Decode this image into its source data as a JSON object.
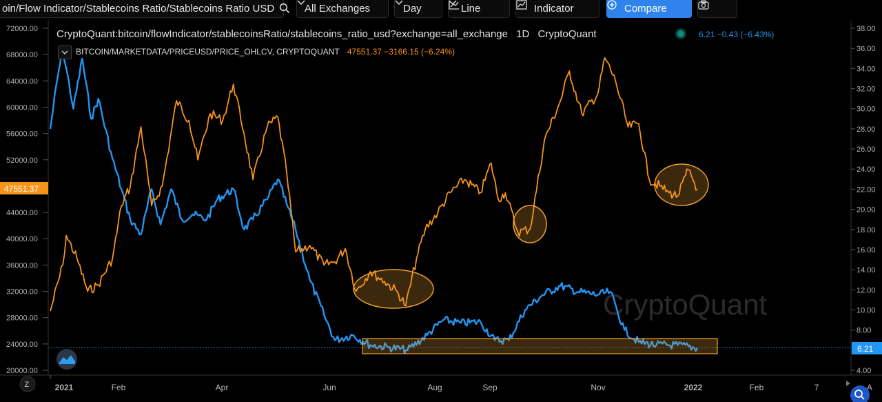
{
  "toolbar": {
    "symbol": "oin/Flow Indicator/Stablecoins Ratio/Stablecoins Ratio USD",
    "exchange": "All Exchanges",
    "interval": "Day",
    "style": "Line",
    "indicator": "Indicator",
    "compare": "Compare"
  },
  "legend": {
    "main_title": "CryptoQuant:bitcoin/flowIndicator/stablecoinsRatio/stablecoins_ratio_usd?exchange=all_exchange",
    "main_interval": "1D",
    "main_source": "CryptoQuant",
    "main_values": "6.21 −0.43 (−6.43%)",
    "price_title": "BITCOIN/MARKETDATA/PRICEUSD/PRICE_OHLCV, CRYPTOQUANT",
    "price_values": "47551.37 −3166.15 (−6.24%)"
  },
  "watermark": "CryptoQuant",
  "colors": {
    "price": "#f7931a",
    "ratio": "#2196f3",
    "highlight": "#f0a030"
  },
  "chart_data": {
    "type": "line",
    "x_ticks": [
      "2021",
      "Feb",
      "Apr",
      "Jun",
      "Aug",
      "Sep",
      "Nov",
      "2022",
      "Feb",
      "7",
      "A"
    ],
    "left_axis": {
      "ticks": [
        "72000.00",
        "68000.00",
        "64000.00",
        "60000.00",
        "56000.00",
        "52000.00",
        "44000.00",
        "40000.00",
        "36000.00",
        "32000.00",
        "28000.00",
        "24000.00",
        "20000.00"
      ],
      "current_label": "47551.37",
      "ylim": [
        20000,
        72000
      ]
    },
    "right_axis": {
      "ticks": [
        "38.00",
        "36.00",
        "34.00",
        "32.00",
        "30.00",
        "28.00",
        "26.00",
        "24.00",
        "22.00",
        "20.00",
        "18.00",
        "16.00",
        "14.00",
        "12.00",
        "10.00",
        "8.00",
        "4.00"
      ],
      "current_label": "6.21",
      "ylim": [
        4,
        38
      ]
    },
    "series": [
      {
        "name": "BITCOIN/MARKETDATA/PRICEUSD/PRICE_OHLCV",
        "axis": "left",
        "points": [
          [
            "2021-01-01",
            29000
          ],
          [
            "2021-01-08",
            36000
          ],
          [
            "2021-01-10",
            40500
          ],
          [
            "2021-01-16",
            37000
          ],
          [
            "2021-01-22",
            32000
          ],
          [
            "2021-01-28",
            33000
          ],
          [
            "2021-02-05",
            37000
          ],
          [
            "2021-02-10",
            45000
          ],
          [
            "2021-02-15",
            48000
          ],
          [
            "2021-02-21",
            57000
          ],
          [
            "2021-02-27",
            45000
          ],
          [
            "2021-03-05",
            48000
          ],
          [
            "2021-03-13",
            61000
          ],
          [
            "2021-03-20",
            58000
          ],
          [
            "2021-03-25",
            52000
          ],
          [
            "2021-04-01",
            59000
          ],
          [
            "2021-04-08",
            58000
          ],
          [
            "2021-04-14",
            63500
          ],
          [
            "2021-04-20",
            56000
          ],
          [
            "2021-04-25",
            49000
          ],
          [
            "2021-05-03",
            57000
          ],
          [
            "2021-05-09",
            58500
          ],
          [
            "2021-05-14",
            50000
          ],
          [
            "2021-05-19",
            38000
          ],
          [
            "2021-05-27",
            39000
          ],
          [
            "2021-06-04",
            36000
          ],
          [
            "2021-06-10",
            36500
          ],
          [
            "2021-06-16",
            38500
          ],
          [
            "2021-06-22",
            32000
          ],
          [
            "2021-06-30",
            35000
          ],
          [
            "2021-07-08",
            33500
          ],
          [
            "2021-07-15",
            32000
          ],
          [
            "2021-07-20",
            29800
          ],
          [
            "2021-07-26",
            37000
          ],
          [
            "2021-07-31",
            41500
          ],
          [
            "2021-08-07",
            44000
          ],
          [
            "2021-08-14",
            47000
          ],
          [
            "2021-08-22",
            49000
          ],
          [
            "2021-08-31",
            47000
          ],
          [
            "2021-09-06",
            51500
          ],
          [
            "2021-09-10",
            46000
          ],
          [
            "2021-09-14",
            47000
          ],
          [
            "2021-09-21",
            41000
          ],
          [
            "2021-09-28",
            41500
          ],
          [
            "2021-10-06",
            55000
          ],
          [
            "2021-10-15",
            61000
          ],
          [
            "2021-10-20",
            65500
          ],
          [
            "2021-10-27",
            59000
          ],
          [
            "2021-11-05",
            62000
          ],
          [
            "2021-11-09",
            67500
          ],
          [
            "2021-11-15",
            64000
          ],
          [
            "2021-11-22",
            57000
          ],
          [
            "2021-11-28",
            57500
          ],
          [
            "2021-12-04",
            49000
          ],
          [
            "2021-12-10",
            48000
          ],
          [
            "2021-12-15",
            47000
          ],
          [
            "2021-12-20",
            46500
          ],
          [
            "2021-12-26",
            50500
          ],
          [
            "2021-12-31",
            47551.37
          ]
        ]
      },
      {
        "name": "stablecoins_ratio_usd",
        "axis": "right",
        "points": [
          [
            "2021-01-01",
            28.0
          ],
          [
            "2021-01-05",
            33.0
          ],
          [
            "2021-01-08",
            36.0
          ],
          [
            "2021-01-14",
            30.0
          ],
          [
            "2021-01-19",
            35.0
          ],
          [
            "2021-01-24",
            29.0
          ],
          [
            "2021-01-28",
            31.0
          ],
          [
            "2021-02-05",
            25.0
          ],
          [
            "2021-02-10",
            22.0
          ],
          [
            "2021-02-15",
            19.0
          ],
          [
            "2021-02-21",
            17.5
          ],
          [
            "2021-02-27",
            22.0
          ],
          [
            "2021-03-04",
            18.5
          ],
          [
            "2021-03-10",
            22.0
          ],
          [
            "2021-03-16",
            19.0
          ],
          [
            "2021-03-22",
            19.5
          ],
          [
            "2021-03-30",
            19.0
          ],
          [
            "2021-04-05",
            21.0
          ],
          [
            "2021-04-14",
            22.0
          ],
          [
            "2021-04-20",
            18.0
          ],
          [
            "2021-04-25",
            19.0
          ],
          [
            "2021-05-03",
            21.0
          ],
          [
            "2021-05-09",
            23.0
          ],
          [
            "2021-05-14",
            20.5
          ],
          [
            "2021-05-19",
            18.0
          ],
          [
            "2021-05-27",
            13.0
          ],
          [
            "2021-06-04",
            9.5
          ],
          [
            "2021-06-10",
            7.0
          ],
          [
            "2021-06-20",
            7.5
          ],
          [
            "2021-06-30",
            6.5
          ],
          [
            "2021-07-10",
            6.3
          ],
          [
            "2021-07-21",
            6.0
          ],
          [
            "2021-08-01",
            7.5
          ],
          [
            "2021-08-10",
            9.0
          ],
          [
            "2021-08-20",
            8.7
          ],
          [
            "2021-08-31",
            8.8
          ],
          [
            "2021-09-08",
            7.0
          ],
          [
            "2021-09-16",
            7.0
          ],
          [
            "2021-09-25",
            10.0
          ],
          [
            "2021-10-05",
            11.5
          ],
          [
            "2021-10-15",
            12.4
          ],
          [
            "2021-10-25",
            11.8
          ],
          [
            "2021-11-05",
            11.5
          ],
          [
            "2021-11-12",
            11.8
          ],
          [
            "2021-11-20",
            8.0
          ],
          [
            "2021-11-28",
            6.8
          ],
          [
            "2021-12-08",
            6.5
          ],
          [
            "2021-12-20",
            6.5
          ],
          [
            "2021-12-31",
            6.21
          ]
        ]
      }
    ]
  }
}
